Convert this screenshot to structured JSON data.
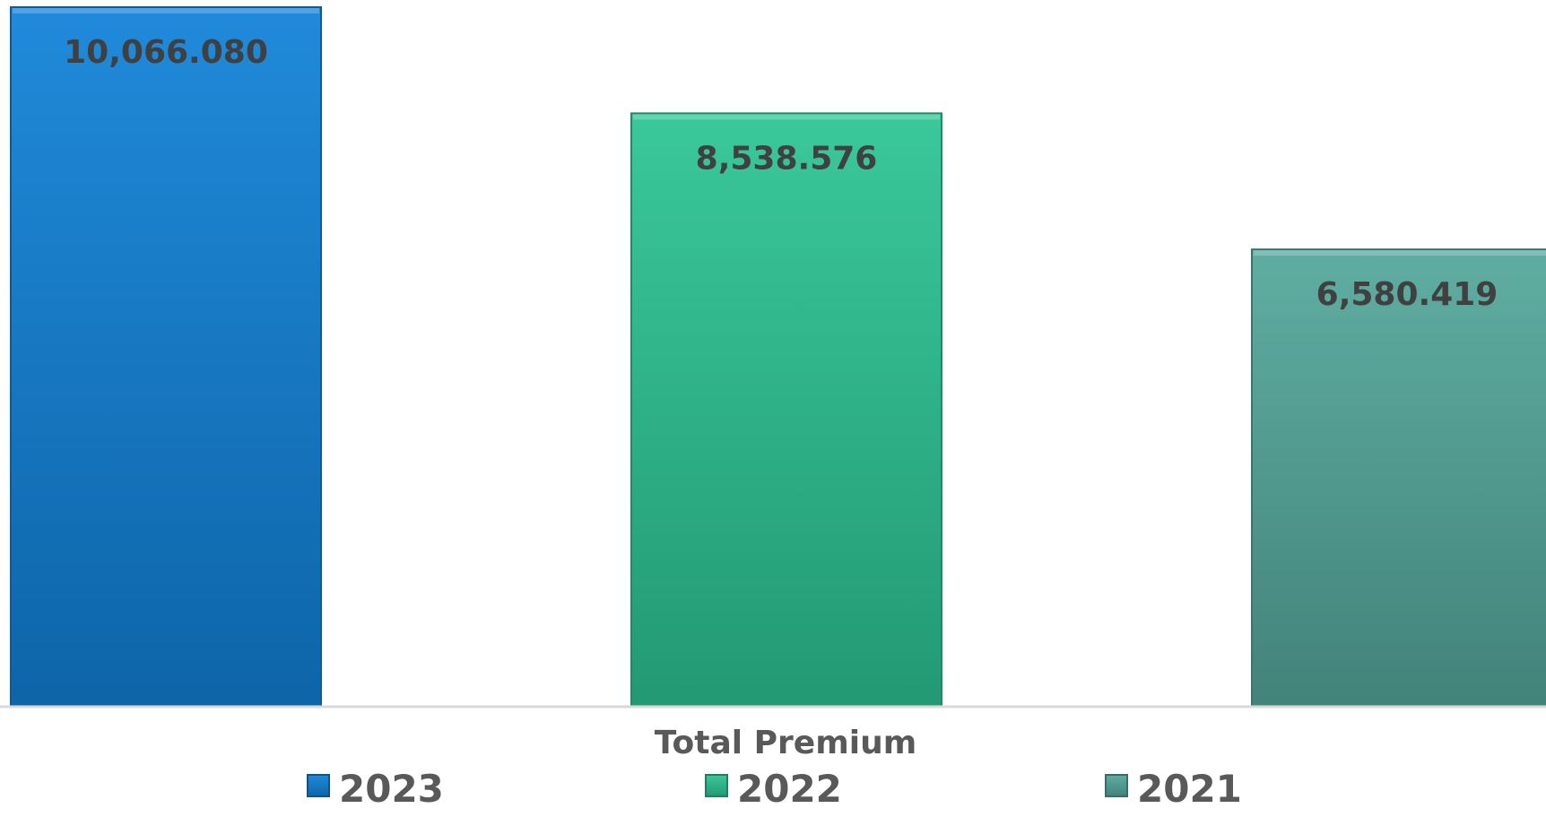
{
  "chart_data": {
    "type": "bar",
    "categories": [
      "Total Premium"
    ],
    "series": [
      {
        "name": "2023",
        "values": [
          10066.08
        ],
        "label": "10,066.080",
        "color": "#1282D8"
      },
      {
        "name": "2022",
        "values": [
          8538.576
        ],
        "label": "8,538.576",
        "color": "#2DC494"
      },
      {
        "name": "2021",
        "values": [
          6580.419
        ],
        "label": "6,580.419",
        "color": "#55A89C"
      }
    ],
    "xlabel": "Total Premium",
    "ylabel": "",
    "legend_position": "bottom",
    "grid": false
  }
}
